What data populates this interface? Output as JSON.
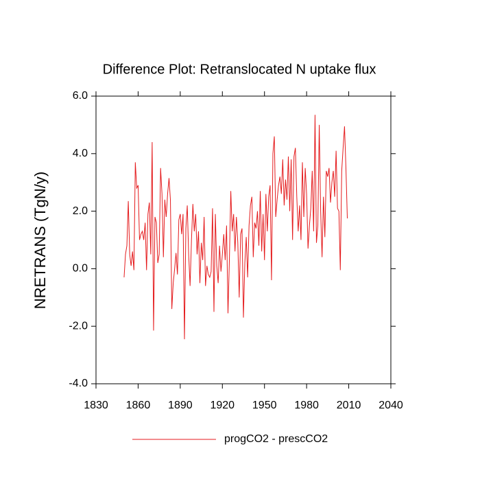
{
  "chart_data": {
    "type": "line",
    "title": "Difference Plot: Retranslocated N uptake flux",
    "y_label": "NRETRANS  (TgN/y)",
    "x": [
      1850,
      1851,
      1852,
      1853,
      1854,
      1855,
      1856,
      1857,
      1858,
      1859,
      1860,
      1861,
      1862,
      1863,
      1864,
      1865,
      1866,
      1867,
      1868,
      1869,
      1870,
      1871,
      1872,
      1873,
      1874,
      1875,
      1876,
      1877,
      1878,
      1879,
      1880,
      1881,
      1882,
      1883,
      1884,
      1885,
      1886,
      1887,
      1888,
      1889,
      1890,
      1891,
      1892,
      1893,
      1894,
      1895,
      1896,
      1897,
      1898,
      1899,
      1900,
      1901,
      1902,
      1903,
      1904,
      1905,
      1906,
      1907,
      1908,
      1909,
      1910,
      1911,
      1912,
      1913,
      1914,
      1915,
      1916,
      1917,
      1918,
      1919,
      1920,
      1921,
      1922,
      1923,
      1924,
      1925,
      1926,
      1927,
      1928,
      1929,
      1930,
      1931,
      1932,
      1933,
      1934,
      1935,
      1936,
      1937,
      1938,
      1939,
      1940,
      1941,
      1942,
      1943,
      1944,
      1945,
      1946,
      1947,
      1948,
      1949,
      1950,
      1951,
      1952,
      1953,
      1954,
      1955,
      1956,
      1957,
      1958,
      1959,
      1960,
      1961,
      1962,
      1963,
      1964,
      1965,
      1966,
      1967,
      1968,
      1969,
      1970,
      1971,
      1972,
      1973,
      1974,
      1975,
      1976,
      1977,
      1978,
      1979,
      1980,
      1981,
      1982,
      1983,
      1984,
      1985,
      1986,
      1987,
      1988,
      1989,
      1990,
      1991,
      1992,
      1993,
      1994,
      1995,
      1996,
      1997,
      1998,
      1999,
      2000,
      2001,
      2002,
      2003,
      2004,
      2005,
      2006,
      2007,
      2008,
      2009
    ],
    "series": [
      {
        "name": "progCO2 - prescCO2",
        "color": "#e41a1c",
        "values": [
          -0.3,
          0.5,
          0.8,
          2.35,
          0.5,
          0.1,
          0.6,
          -0.05,
          3.7,
          2.8,
          2.9,
          1.0,
          1.2,
          1.3,
          1.0,
          1.6,
          -0.05,
          1.9,
          2.3,
          0.5,
          4.4,
          -2.15,
          1.8,
          1.6,
          0.2,
          0.5,
          3.5,
          2.6,
          0.4,
          2.4,
          1.8,
          2.6,
          3.15,
          2.4,
          -1.4,
          -0.5,
          0.0,
          0.55,
          -0.2,
          1.7,
          1.9,
          1.2,
          1.9,
          -2.45,
          1.4,
          2.2,
          0.5,
          -0.6,
          1.0,
          2.25,
          1.3,
          1.9,
          0.5,
          1.3,
          -0.5,
          0.9,
          0.3,
          1.8,
          -0.6,
          0.1,
          -0.2,
          -0.3,
          -0.1,
          2.1,
          -1.5,
          1.9,
          0.1,
          -0.5,
          0.8,
          -0.1,
          0.5,
          1.2,
          0.3,
          1.5,
          -1.55,
          0.3,
          2.7,
          1.3,
          1.9,
          0.6,
          1.8,
          0.9,
          -1.0,
          1.2,
          1.4,
          -1.7,
          0.2,
          1.1,
          -0.3,
          1.5,
          2.2,
          2.5,
          0.4,
          1.6,
          1.4,
          2.0,
          0.8,
          2.7,
          0.6,
          1.9,
          0.3,
          2.6,
          1.3,
          2.5,
          2.9,
          -0.4,
          4.0,
          4.6,
          1.8,
          2.4,
          2.9,
          3.2,
          2.6,
          3.8,
          2.2,
          3.1,
          2.4,
          3.9,
          2.0,
          3.8,
          1.0,
          3.9,
          4.2,
          2.5,
          1.3,
          2.2,
          1.0,
          3.7,
          1.8,
          3.5,
          2.6,
          0.7,
          1.5,
          2.1,
          3.4,
          1.3,
          5.35,
          0.9,
          1.5,
          5.0,
          2.0,
          0.4,
          2.5,
          1.1,
          3.4,
          3.2,
          3.5,
          2.3,
          3.0,
          3.4,
          2.5,
          4.1,
          2.1,
          2.0,
          -0.05,
          3.4,
          4.2,
          4.95,
          3.5,
          1.75
        ]
      }
    ],
    "xlim": [
      1830,
      2040
    ],
    "xticks": [
      1830,
      1860,
      1890,
      1920,
      1950,
      1980,
      2010,
      2040
    ],
    "ylim": [
      -4,
      6
    ],
    "yticks": [
      {
        "value": -4,
        "label": "-4.0"
      },
      {
        "value": -2,
        "label": "-2.0"
      },
      {
        "value": 0,
        "label": "0.0"
      },
      {
        "value": 2,
        "label": "2.0"
      },
      {
        "value": 4,
        "label": "4.0"
      },
      {
        "value": 6,
        "label": "6.0"
      }
    ],
    "legend": "bottom"
  }
}
